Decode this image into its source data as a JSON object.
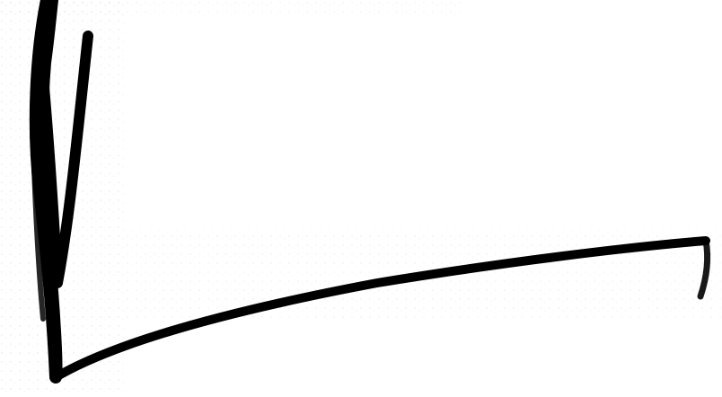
{
  "image": {
    "kind": "scanned handwritten stroke (signature-like mark)",
    "background_color": "#ffffff",
    "ink_color": "#000000",
    "noise_color": "#7a7a7a",
    "visible_text": []
  },
  "icons": [
    "handwritten-scribble-icon"
  ]
}
